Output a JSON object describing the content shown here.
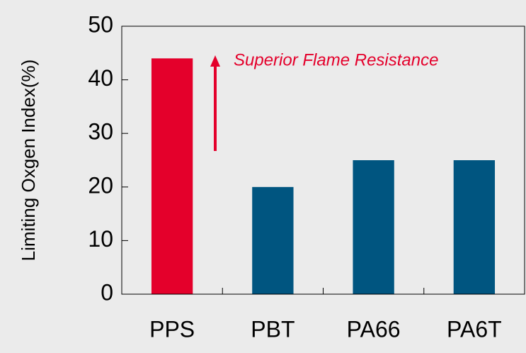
{
  "chart_data": {
    "type": "bar",
    "y_label": "Limiting Oxgen Index(%)",
    "annotation": "Superior Flame Resistance",
    "categories": [
      "PPS",
      "PBT",
      "PA66",
      "PA6T"
    ],
    "values": [
      44,
      20,
      25,
      25
    ],
    "colors": [
      "#e4002b",
      "#005580",
      "#005580",
      "#005580"
    ],
    "ylim": [
      0,
      50
    ],
    "yticks": [
      0,
      10,
      20,
      30,
      40,
      50
    ],
    "grid": false
  }
}
